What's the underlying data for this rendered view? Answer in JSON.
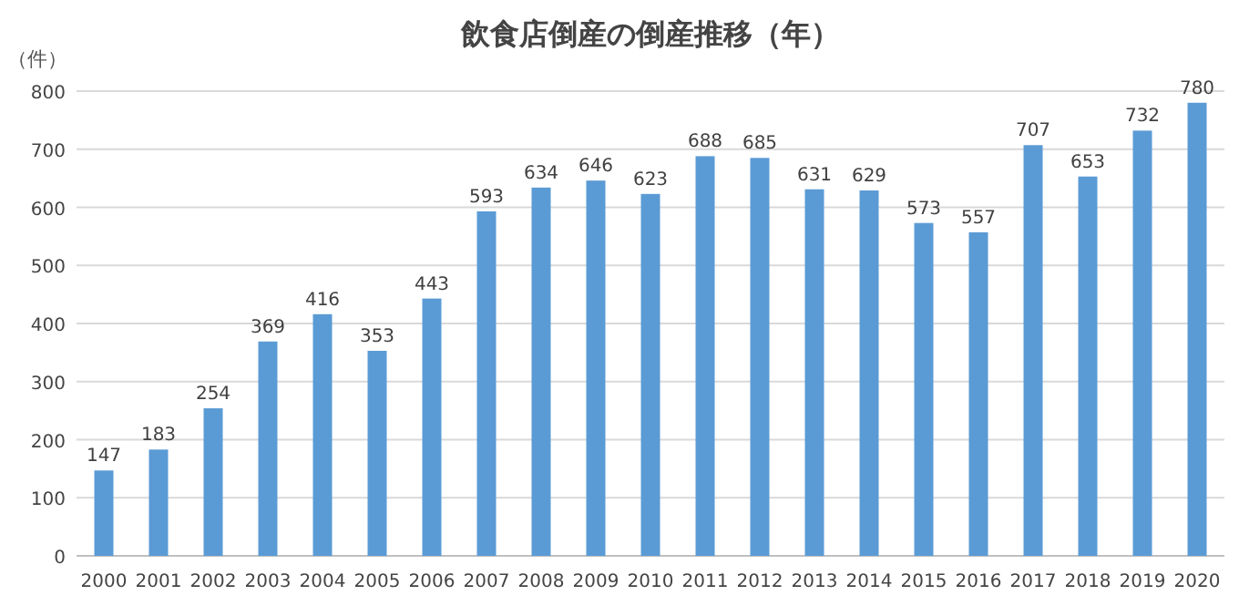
{
  "chart_data": {
    "type": "bar",
    "title": "飲食店倒産の倒産推移（年）",
    "ylabel": "（件）",
    "categories": [
      "2000",
      "2001",
      "2002",
      "2003",
      "2004",
      "2005",
      "2006",
      "2007",
      "2008",
      "2009",
      "2010",
      "2011",
      "2012",
      "2013",
      "2014",
      "2015",
      "2016",
      "2017",
      "2018",
      "2019",
      "2020"
    ],
    "values": [
      147,
      183,
      254,
      369,
      416,
      353,
      443,
      593,
      634,
      646,
      623,
      688,
      685,
      631,
      629,
      573,
      557,
      707,
      653,
      732,
      780
    ],
    "color": "#5b9bd5",
    "ylim": [
      0,
      800
    ],
    "yticks": [
      0,
      100,
      200,
      300,
      400,
      500,
      600,
      700,
      800
    ],
    "grid": "y",
    "data_labels": true
  }
}
